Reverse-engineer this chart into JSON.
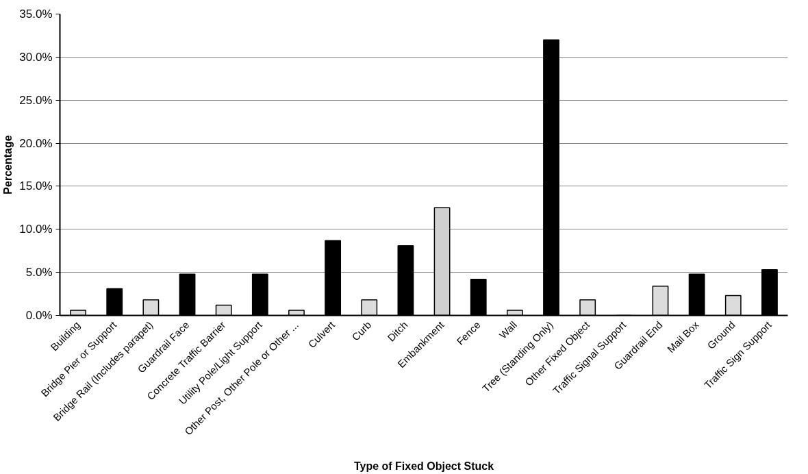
{
  "chart_data": {
    "type": "bar",
    "xlabel": "Type of Fixed Object Stuck",
    "ylabel": "Percentage",
    "categories": [
      "Building",
      "Bridge Pier or Support",
      "Bridge Rail (Includes parapet)",
      "Guardrail Face",
      "Concrete Traffic Barrier",
      "Utility Pole/Light Support",
      "Other Post, Other Pole or Other ...",
      "Culvert",
      "Curb",
      "Ditch",
      "Embankment",
      "Fence",
      "Wall",
      "Tree (Standing Only)",
      "Other Fixed Object",
      "Traffic Signal Support",
      "Guardrail End",
      "Mail Box",
      "Ground",
      "Traffic Sign Support"
    ],
    "values": [
      0.6,
      3.1,
      1.8,
      4.8,
      1.2,
      4.8,
      0.6,
      8.7,
      1.8,
      8.1,
      12.5,
      4.2,
      0.6,
      32.0,
      1.8,
      0,
      3.4,
      4.8,
      2.3,
      5.3
    ],
    "colors": [
      "#dcdcdc",
      "#000000",
      "#dcdcdc",
      "#000000",
      "#dcdcdc",
      "#000000",
      "#dcdcdc",
      "#000000",
      "#dcdcdc",
      "#000000",
      "#d0d0d0",
      "#000000",
      "#dcdcdc",
      "#000000",
      "#dcdcdc",
      "#000000",
      "#dcdcdc",
      "#000000",
      "#dcdcdc",
      "#000000"
    ],
    "ylim": [
      0,
      35
    ],
    "yticks": [
      {
        "value": 0,
        "label": "0.0%"
      },
      {
        "value": 5,
        "label": "5.0%"
      },
      {
        "value": 10,
        "label": "10.0%"
      },
      {
        "value": 15,
        "label": "15.0%"
      },
      {
        "value": 20,
        "label": "20.0%"
      },
      {
        "value": 25,
        "label": "25.0%"
      },
      {
        "value": 30,
        "label": "30.0%"
      },
      {
        "value": 35,
        "label": "35.0%"
      }
    ],
    "grid": "y"
  }
}
